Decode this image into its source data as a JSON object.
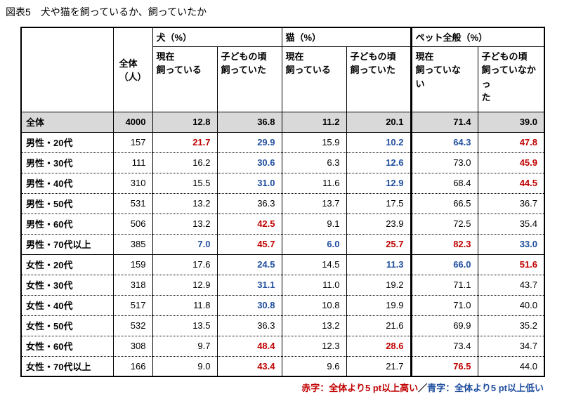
{
  "title": "図表5　犬や猫を飼っているか、飼っていたか",
  "table": {
    "total_header": "全体\n（人）",
    "groups": {
      "dog": "犬（%）",
      "cat": "猫（%）",
      "pet": "ペット全般（%）"
    },
    "headers": {
      "dog_now": "現在\n飼っている",
      "dog_child": "子どもの頃\n飼っていた",
      "cat_now": "現在\n飼っている",
      "cat_child": "子どもの頃\n飼っていた",
      "pet_now": "現在\n飼っていな\nい",
      "pet_child": "子どもの頃\n飼っていなかっ\nた"
    },
    "rows": [
      {
        "label": "全体",
        "n": "4000",
        "values": [
          "12.8",
          "36.8",
          "11.2",
          "20.1",
          "71.4",
          "39.0"
        ],
        "colors": [
          "",
          "",
          "",
          "",
          "",
          ""
        ],
        "total": true
      },
      {
        "label": "男性・20代",
        "n": "157",
        "values": [
          "21.7",
          "29.9",
          "15.9",
          "10.2",
          "64.3",
          "47.8"
        ],
        "colors": [
          "red",
          "blue",
          "",
          "blue",
          "blue",
          "red"
        ],
        "group_start": true
      },
      {
        "label": "男性・30代",
        "n": "111",
        "values": [
          "16.2",
          "30.6",
          "6.3",
          "12.6",
          "73.0",
          "45.9"
        ],
        "colors": [
          "",
          "blue",
          "",
          "blue",
          "",
          "red"
        ]
      },
      {
        "label": "男性・40代",
        "n": "310",
        "values": [
          "15.5",
          "31.0",
          "11.6",
          "12.9",
          "68.4",
          "44.5"
        ],
        "colors": [
          "",
          "blue",
          "",
          "blue",
          "",
          "red"
        ]
      },
      {
        "label": "男性・50代",
        "n": "531",
        "values": [
          "13.2",
          "36.3",
          "13.7",
          "17.5",
          "66.5",
          "36.7"
        ],
        "colors": [
          "",
          "",
          "",
          "",
          "",
          ""
        ]
      },
      {
        "label": "男性・60代",
        "n": "506",
        "values": [
          "13.2",
          "42.5",
          "9.1",
          "23.9",
          "72.5",
          "35.4"
        ],
        "colors": [
          "",
          "red",
          "",
          "",
          "",
          ""
        ]
      },
      {
        "label": "男性・70代以上",
        "n": "385",
        "values": [
          "7.0",
          "45.7",
          "6.0",
          "25.7",
          "82.3",
          "33.0"
        ],
        "colors": [
          "blue",
          "red",
          "blue",
          "red",
          "red",
          "blue"
        ]
      },
      {
        "label": "女性・20代",
        "n": "159",
        "values": [
          "17.6",
          "24.5",
          "14.5",
          "11.3",
          "66.0",
          "51.6"
        ],
        "colors": [
          "",
          "blue",
          "",
          "blue",
          "blue",
          "red"
        ],
        "group_start": true
      },
      {
        "label": "女性・30代",
        "n": "318",
        "values": [
          "12.9",
          "31.1",
          "11.0",
          "19.2",
          "71.1",
          "43.7"
        ],
        "colors": [
          "",
          "blue",
          "",
          "",
          "",
          ""
        ]
      },
      {
        "label": "女性・40代",
        "n": "517",
        "values": [
          "11.8",
          "30.8",
          "10.8",
          "19.9",
          "71.0",
          "40.0"
        ],
        "colors": [
          "",
          "blue",
          "",
          "",
          "",
          ""
        ]
      },
      {
        "label": "女性・50代",
        "n": "532",
        "values": [
          "13.5",
          "36.3",
          "13.2",
          "21.6",
          "69.9",
          "35.2"
        ],
        "colors": [
          "",
          "",
          "",
          "",
          "",
          ""
        ]
      },
      {
        "label": "女性・60代",
        "n": "308",
        "values": [
          "9.7",
          "48.4",
          "12.3",
          "28.6",
          "73.4",
          "34.7"
        ],
        "colors": [
          "",
          "red",
          "",
          "red",
          "",
          ""
        ]
      },
      {
        "label": "女性・70代以上",
        "n": "166",
        "values": [
          "9.0",
          "43.4",
          "9.6",
          "21.7",
          "76.5",
          "44.0"
        ],
        "colors": [
          "",
          "red",
          "",
          "",
          "red",
          ""
        ]
      }
    ]
  },
  "footnote": {
    "red": "赤字：全体より5 pt以上高い",
    "separator": "／",
    "blue": "青字：全体より5 pt以上低い"
  },
  "colors": {
    "red": "#C00000",
    "blue": "#1F4E9F",
    "total_row_bg": "#D9D9D9"
  },
  "chart_data": {
    "type": "table",
    "title": "図表5　犬や猫を飼っているか、飼っていたか",
    "column_groups": [
      "犬（%）",
      "猫（%）",
      "ペット全般（%）"
    ],
    "columns": [
      "全体（人）",
      "犬・現在飼っている(%)",
      "犬・子どもの頃飼っていた(%)",
      "猫・現在飼っている(%)",
      "猫・子どもの頃飼っていた(%)",
      "ペット全般・現在飼っていない(%)",
      "ペット全般・子どもの頃飼っていなかった(%)"
    ],
    "rows": [
      {
        "label": "全体",
        "values": [
          4000,
          12.8,
          36.8,
          11.2,
          20.1,
          71.4,
          39.0
        ]
      },
      {
        "label": "男性・20代",
        "values": [
          157,
          21.7,
          29.9,
          15.9,
          10.2,
          64.3,
          47.8
        ]
      },
      {
        "label": "男性・30代",
        "values": [
          111,
          16.2,
          30.6,
          6.3,
          12.6,
          73.0,
          45.9
        ]
      },
      {
        "label": "男性・40代",
        "values": [
          310,
          15.5,
          31.0,
          11.6,
          12.9,
          68.4,
          44.5
        ]
      },
      {
        "label": "男性・50代",
        "values": [
          531,
          13.2,
          36.3,
          13.7,
          17.5,
          66.5,
          36.7
        ]
      },
      {
        "label": "男性・60代",
        "values": [
          506,
          13.2,
          42.5,
          9.1,
          23.9,
          72.5,
          35.4
        ]
      },
      {
        "label": "男性・70代以上",
        "values": [
          385,
          7.0,
          45.7,
          6.0,
          25.7,
          82.3,
          33.0
        ]
      },
      {
        "label": "女性・20代",
        "values": [
          159,
          17.6,
          24.5,
          14.5,
          11.3,
          66.0,
          51.6
        ]
      },
      {
        "label": "女性・30代",
        "values": [
          318,
          12.9,
          31.1,
          11.0,
          19.2,
          71.1,
          43.7
        ]
      },
      {
        "label": "女性・40代",
        "values": [
          517,
          11.8,
          30.8,
          10.8,
          19.9,
          71.0,
          40.0
        ]
      },
      {
        "label": "女性・50代",
        "values": [
          532,
          13.5,
          36.3,
          13.2,
          21.6,
          69.9,
          35.2
        ]
      },
      {
        "label": "女性・60代",
        "values": [
          308,
          9.7,
          48.4,
          12.3,
          28.6,
          73.4,
          34.7
        ]
      },
      {
        "label": "女性・70代以上",
        "values": [
          166,
          9.0,
          43.4,
          9.6,
          21.7,
          76.5,
          44.0
        ]
      }
    ],
    "notes": "赤字：全体より5 pt以上高い／青字：全体より5 pt以上低い"
  }
}
